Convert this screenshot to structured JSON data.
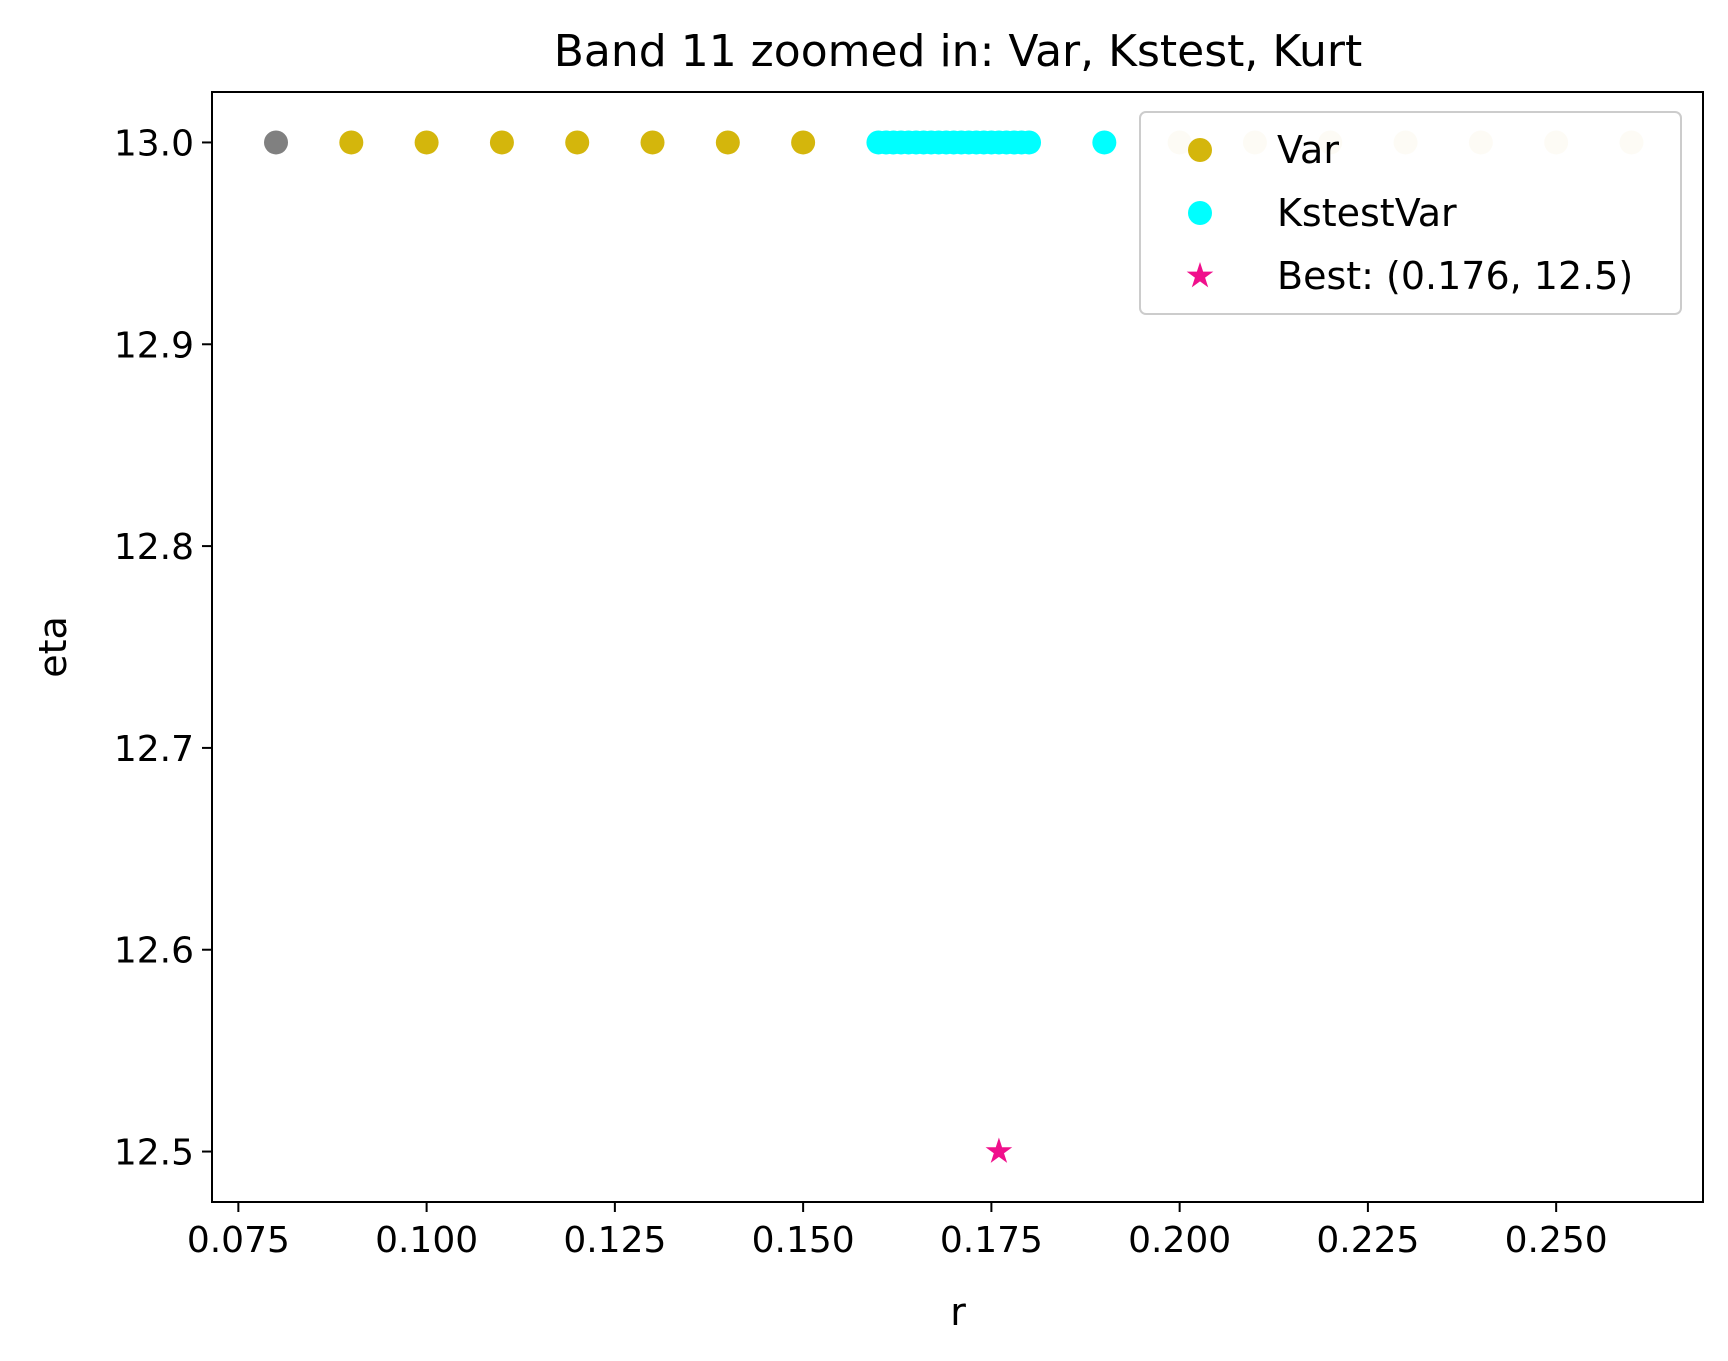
{
  "chart_data": {
    "type": "scatter",
    "title": "Band 11 zoomed in: Var, Kstest, Kurt",
    "xlabel": "r",
    "ylabel": "eta",
    "xlim": [
      0.0715,
      0.2695
    ],
    "ylim": [
      12.475,
      13.025
    ],
    "x_ticks": [
      "0.075",
      "0.100",
      "0.125",
      "0.150",
      "0.175",
      "0.200",
      "0.225",
      "0.250"
    ],
    "x_tick_values": [
      0.075,
      0.1,
      0.125,
      0.15,
      0.175,
      0.2,
      0.225,
      0.25
    ],
    "y_ticks": [
      "12.5",
      "12.6",
      "12.7",
      "12.8",
      "12.9",
      "13.0"
    ],
    "y_tick_values": [
      12.5,
      12.6,
      12.7,
      12.8,
      12.9,
      13.0
    ],
    "grid": false,
    "legend_position": "top-right",
    "series": [
      {
        "key": "excluded",
        "color": "#808080",
        "marker": "circle",
        "in_legend": false,
        "points": [
          [
            0.08,
            13.0
          ]
        ]
      },
      {
        "key": "var",
        "name": "Var",
        "color": "#d4b60c",
        "marker": "circle",
        "in_legend": true,
        "points": [
          [
            0.09,
            13.0
          ],
          [
            0.1,
            13.0
          ],
          [
            0.11,
            13.0
          ],
          [
            0.12,
            13.0
          ],
          [
            0.13,
            13.0
          ],
          [
            0.14,
            13.0
          ],
          [
            0.15,
            13.0
          ]
        ]
      },
      {
        "key": "var_faded",
        "color": "#f4ebcc",
        "marker": "circle",
        "in_legend": false,
        "points": [
          [
            0.2,
            13.0
          ],
          [
            0.21,
            13.0
          ],
          [
            0.22,
            13.0
          ],
          [
            0.23,
            13.0
          ],
          [
            0.24,
            13.0
          ],
          [
            0.25,
            13.0
          ],
          [
            0.26,
            13.0
          ]
        ]
      },
      {
        "key": "kstestvar",
        "name": "KstestVar",
        "color": "#00ffff",
        "marker": "circle",
        "in_legend": true,
        "points": [
          [
            0.16,
            13.0
          ],
          [
            0.161,
            13.0
          ],
          [
            0.162,
            13.0
          ],
          [
            0.163,
            13.0
          ],
          [
            0.164,
            13.0
          ],
          [
            0.165,
            13.0
          ],
          [
            0.166,
            13.0
          ],
          [
            0.167,
            13.0
          ],
          [
            0.168,
            13.0
          ],
          [
            0.169,
            13.0
          ],
          [
            0.17,
            13.0
          ],
          [
            0.171,
            13.0
          ],
          [
            0.172,
            13.0
          ],
          [
            0.173,
            13.0
          ],
          [
            0.174,
            13.0
          ],
          [
            0.175,
            13.0
          ],
          [
            0.176,
            13.0
          ],
          [
            0.177,
            13.0
          ],
          [
            0.178,
            13.0
          ],
          [
            0.179,
            13.0
          ],
          [
            0.18,
            13.0
          ],
          [
            0.19,
            13.0
          ]
        ]
      },
      {
        "key": "best",
        "name": "Best: (0.176, 12.5)",
        "color": "#f0108c",
        "marker": "star",
        "in_legend": true,
        "points": [
          [
            0.176,
            12.5
          ]
        ]
      }
    ]
  }
}
